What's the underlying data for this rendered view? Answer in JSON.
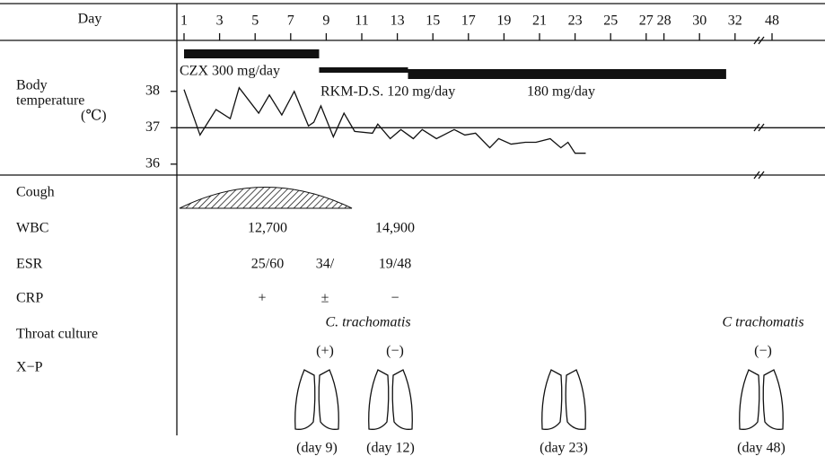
{
  "header": {
    "label": "Day"
  },
  "days": {
    "ticks": [
      1,
      3,
      5,
      7,
      9,
      11,
      13,
      15,
      17,
      19,
      21,
      23,
      25,
      27,
      28,
      30,
      32,
      48
    ]
  },
  "drugs": [
    {
      "label": "CZX 300 mg/day",
      "start": 1,
      "end": 8.6
    },
    {
      "label": "RKM-D.S. 120 mg/day",
      "start": 8.6,
      "end": 13.6
    },
    {
      "label": "180 mg/day",
      "start": 13.6,
      "end": 31.5
    }
  ],
  "temperature": {
    "label_lines": [
      "Body",
      "temperature",
      "(℃)"
    ],
    "ylim": [
      35.7,
      39.4
    ],
    "yticks": [
      36,
      37,
      38
    ],
    "reference_line": 37,
    "x": [
      1,
      1.9,
      2.8,
      3.6,
      4.1,
      5.2,
      5.8,
      6.5,
      7.2,
      8,
      8.3,
      8.7,
      9.4,
      10,
      10.6,
      11.6,
      11.9,
      12.6,
      13.2,
      13.9,
      14.4,
      15.2,
      15.6,
      16.2,
      16.8,
      17.4,
      18.2,
      18.7,
      19.4,
      20.2,
      20.8,
      21.6,
      22.2,
      22.6,
      23,
      23.6
    ],
    "values": [
      38.05,
      36.8,
      37.5,
      37.25,
      38.1,
      37.4,
      37.9,
      37.35,
      38,
      37.05,
      37.15,
      37.6,
      36.75,
      37.4,
      36.9,
      36.85,
      37.1,
      36.7,
      36.95,
      36.7,
      36.95,
      36.7,
      36.8,
      36.95,
      36.8,
      36.85,
      36.45,
      36.7,
      36.55,
      36.6,
      36.6,
      36.7,
      36.45,
      36.6,
      36.3,
      36.3
    ]
  },
  "rows": [
    {
      "label": "Cough",
      "entries": []
    },
    {
      "label": "WBC",
      "entries": [
        "12,700",
        "14,900"
      ]
    },
    {
      "label": "ESR",
      "entries": [
        "25/60",
        "34/",
        "19/48"
      ]
    },
    {
      "label": "CRP",
      "entries": [
        "+",
        "±",
        "−"
      ]
    },
    {
      "label": "Throat culture",
      "entries": [
        "C. trachomatis",
        "C  trachomatis"
      ]
    },
    {
      "label": "X−P",
      "entries": [
        "(+)",
        "(−)",
        "(−)"
      ]
    }
  ],
  "xray_captions": [
    "(day 9)",
    "(day 12)",
    "(day 23)",
    "(day 48)"
  ]
}
